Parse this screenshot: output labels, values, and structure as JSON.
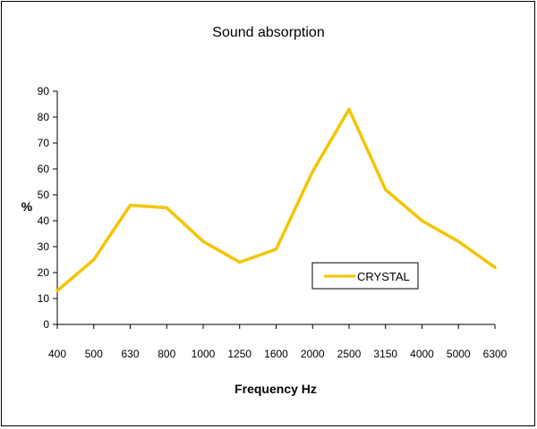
{
  "chart_data": {
    "type": "line",
    "title": "Sound absorption",
    "xlabel": "Frequency Hz",
    "ylabel": "%",
    "categories": [
      "400",
      "500",
      "630",
      "800",
      "1000",
      "1250",
      "1600",
      "2000",
      "2500",
      "3150",
      "4000",
      "5000",
      "6300"
    ],
    "series": [
      {
        "name": "CRYSTAL",
        "color": "#F5C400",
        "values": [
          13,
          25,
          46,
          45,
          32,
          24,
          29,
          59,
          83,
          52,
          40,
          32,
          22
        ]
      }
    ],
    "ylim": [
      0,
      90
    ],
    "yticks": [
      "0",
      "10",
      "20",
      "30",
      "40",
      "50",
      "60",
      "70",
      "80",
      "90"
    ],
    "grid": false,
    "legend_position": "right"
  }
}
